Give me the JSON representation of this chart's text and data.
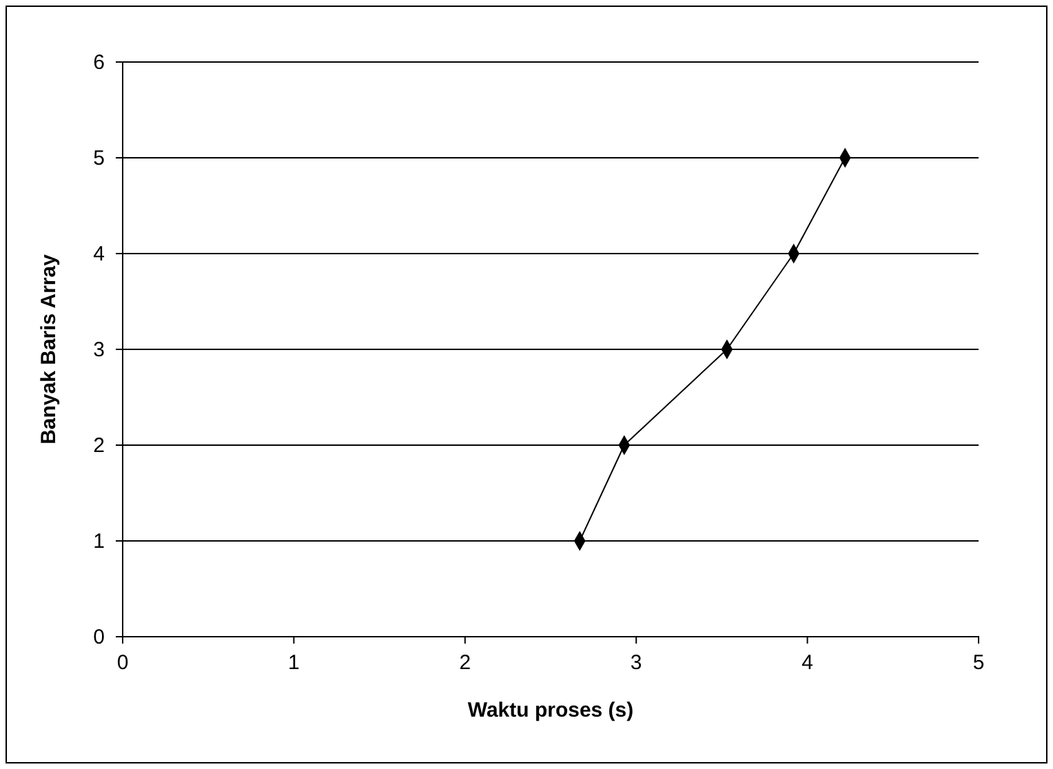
{
  "chart_data": {
    "type": "line",
    "xlabel": "Waktu proses (s)",
    "ylabel": "Banyak Baris Array",
    "x": [
      2.67,
      2.93,
      3.53,
      3.92,
      4.22
    ],
    "series": [
      {
        "color": "#000000",
        "values": [
          1,
          2,
          3,
          4,
          5
        ]
      }
    ],
    "xlim": [
      0,
      5
    ],
    "xticks": [
      0,
      1,
      2,
      3,
      4,
      5
    ],
    "ylim": [
      0,
      6
    ],
    "yticks": [
      0,
      1,
      2,
      3,
      4,
      5,
      6
    ],
    "grid": "y",
    "marker": "diamond",
    "line_style": "solid"
  }
}
